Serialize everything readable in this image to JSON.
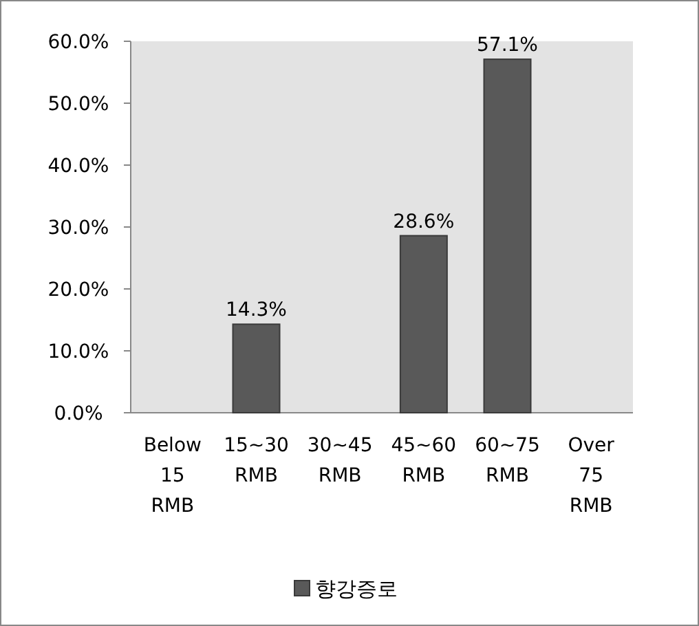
{
  "chart_data": {
    "type": "bar",
    "categories": [
      "Below 15 RMB",
      "15~30 RMB",
      "30~45 RMB",
      "45~60 RMB",
      "60~75 RMB",
      "Over 75 RMB"
    ],
    "series": [
      {
        "name": "향강증로",
        "color": "#595959",
        "values": [
          0,
          14.3,
          0,
          28.6,
          57.1,
          0
        ],
        "value_labels": [
          null,
          "14.3%",
          null,
          "28.6%",
          "57.1%",
          null
        ]
      }
    ],
    "ylim": [
      0,
      60
    ],
    "yticks": [
      {
        "value": 0,
        "label": "0.0%"
      },
      {
        "value": 10,
        "label": "10.0%"
      },
      {
        "value": 20,
        "label": "20.0%"
      },
      {
        "value": 30,
        "label": "30.0%"
      },
      {
        "value": 40,
        "label": "40.0%"
      },
      {
        "value": 50,
        "label": "50.0%"
      },
      {
        "value": 60,
        "label": "60.0%"
      }
    ],
    "grid": false,
    "legend": "bottom"
  }
}
